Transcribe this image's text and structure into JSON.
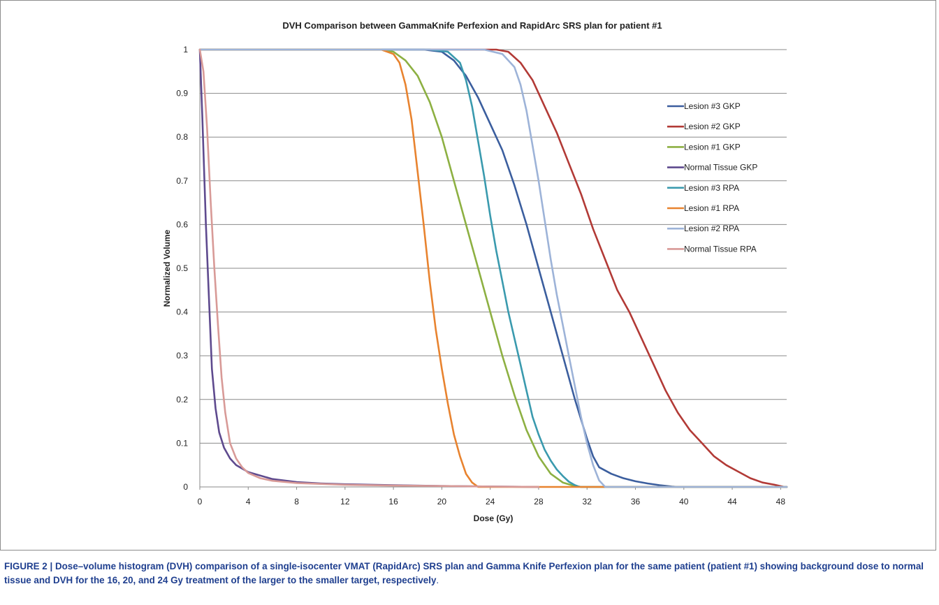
{
  "chart_data": {
    "type": "line",
    "title": "DVH Comparison between GammaKnife Perfexion and RapidArc SRS plan for patient #1",
    "xlabel": "Dose (Gy)",
    "ylabel": "Normalized Volume",
    "xlim": [
      0,
      48.5
    ],
    "ylim": [
      0,
      1
    ],
    "x_ticks": [
      0,
      4,
      8,
      12,
      16,
      20,
      24,
      28,
      32,
      36,
      40,
      44,
      48
    ],
    "y_ticks": [
      0,
      0.1,
      0.2,
      0.3,
      0.4,
      0.5,
      0.6,
      0.7,
      0.8,
      0.9,
      1
    ],
    "y_tick_labels": [
      "0",
      "0.1",
      "0.2",
      "0.3",
      "0.4",
      "0.5",
      "0.6",
      "0.7",
      "0.8",
      "0.9",
      "1"
    ],
    "grid": "horizontal",
    "legend_position": "right",
    "series": [
      {
        "name": "Lesion #3 GKP",
        "color": "#3b5e9e",
        "x": [
          0,
          18.5,
          20,
          21,
          22,
          23,
          24,
          25,
          26,
          27,
          28,
          29,
          30,
          31,
          32,
          32.5,
          33,
          34,
          35,
          36,
          37,
          38,
          39,
          39.5,
          48.5
        ],
        "y": [
          1,
          1,
          0.995,
          0.975,
          0.94,
          0.89,
          0.83,
          0.77,
          0.69,
          0.6,
          0.5,
          0.4,
          0.3,
          0.2,
          0.11,
          0.07,
          0.045,
          0.03,
          0.02,
          0.013,
          0.008,
          0.004,
          0.001,
          0,
          0
        ]
      },
      {
        "name": "Lesion #2 GKP",
        "color": "#b23a36",
        "x": [
          0,
          24.5,
          25.5,
          26.5,
          27.5,
          28.5,
          29.5,
          30.5,
          31.5,
          32.5,
          33.5,
          34.5,
          35.5,
          36.5,
          37.5,
          38.5,
          39.5,
          40.5,
          41.5,
          42.5,
          43.5,
          44.5,
          45.5,
          46.5,
          47.5,
          48.3,
          48.5
        ],
        "y": [
          1,
          1,
          0.995,
          0.97,
          0.93,
          0.87,
          0.81,
          0.74,
          0.67,
          0.59,
          0.52,
          0.45,
          0.4,
          0.34,
          0.28,
          0.22,
          0.17,
          0.13,
          0.1,
          0.07,
          0.05,
          0.035,
          0.02,
          0.01,
          0.005,
          0,
          0
        ]
      },
      {
        "name": "Lesion #1 GKP",
        "color": "#8db042",
        "x": [
          0,
          15,
          16,
          17,
          18,
          19,
          20,
          21,
          22,
          23,
          24,
          25,
          26,
          27,
          28,
          29,
          30,
          31,
          31.5,
          48.5
        ],
        "y": [
          1,
          1,
          0.995,
          0.975,
          0.94,
          0.88,
          0.8,
          0.7,
          0.6,
          0.5,
          0.4,
          0.3,
          0.21,
          0.13,
          0.07,
          0.03,
          0.01,
          0.002,
          0,
          0
        ]
      },
      {
        "name": "Normal Tissue GKP",
        "color": "#5e4a8e",
        "x": [
          0,
          0.2,
          0.5,
          0.8,
          1.0,
          1.3,
          1.6,
          2,
          2.5,
          3,
          4,
          6,
          8,
          10,
          12,
          16,
          20,
          24,
          28
        ],
        "y": [
          1,
          0.85,
          0.6,
          0.4,
          0.27,
          0.18,
          0.125,
          0.09,
          0.065,
          0.05,
          0.034,
          0.018,
          0.011,
          0.008,
          0.006,
          0.004,
          0.002,
          0.001,
          0
        ]
      },
      {
        "name": "Lesion #3 RPA",
        "color": "#3a9aae",
        "x": [
          0,
          19,
          20.5,
          21.5,
          22,
          22.5,
          23,
          23.5,
          24,
          24.5,
          25,
          25.5,
          26,
          26.5,
          27,
          27.5,
          28,
          28.5,
          29,
          29.5,
          30,
          30.5,
          31,
          31.3,
          31.5,
          48.5
        ],
        "y": [
          1,
          1,
          0.995,
          0.97,
          0.93,
          0.87,
          0.79,
          0.71,
          0.62,
          0.54,
          0.47,
          0.4,
          0.34,
          0.28,
          0.22,
          0.16,
          0.12,
          0.085,
          0.06,
          0.04,
          0.025,
          0.012,
          0.004,
          0.001,
          0,
          0
        ]
      },
      {
        "name": "Lesion #1 RPA",
        "color": "#e8832f",
        "x": [
          0,
          15,
          16,
          16.5,
          17,
          17.5,
          18,
          18.5,
          19,
          19.5,
          20,
          20.5,
          21,
          21.5,
          22,
          22.5,
          23,
          48.5
        ],
        "y": [
          1,
          1,
          0.99,
          0.97,
          0.92,
          0.84,
          0.72,
          0.6,
          0.47,
          0.36,
          0.27,
          0.19,
          0.12,
          0.07,
          0.03,
          0.01,
          0,
          0
        ]
      },
      {
        "name": "Lesion #2 RPA",
        "color": "#9db3d8",
        "x": [
          0,
          23.5,
          25,
          26,
          26.5,
          27,
          27.5,
          28,
          28.5,
          29,
          29.5,
          30,
          30.5,
          31,
          31.5,
          32,
          32.5,
          33,
          33.5,
          48.5
        ],
        "y": [
          1,
          1,
          0.99,
          0.96,
          0.92,
          0.86,
          0.78,
          0.7,
          0.61,
          0.52,
          0.44,
          0.37,
          0.3,
          0.23,
          0.16,
          0.1,
          0.05,
          0.015,
          0,
          0
        ]
      },
      {
        "name": "Normal Tissue RPA",
        "color": "#d89a97",
        "x": [
          0,
          0.3,
          0.6,
          0.9,
          1.2,
          1.5,
          1.8,
          2.1,
          2.5,
          3,
          3.5,
          4,
          5,
          6,
          8,
          12,
          16,
          20,
          24,
          28
        ],
        "y": [
          1,
          0.95,
          0.82,
          0.65,
          0.5,
          0.37,
          0.25,
          0.17,
          0.1,
          0.065,
          0.045,
          0.032,
          0.02,
          0.014,
          0.009,
          0.005,
          0.003,
          0.002,
          0.001,
          0
        ]
      }
    ]
  },
  "caption": {
    "label": "FIGURE 2",
    "separator": " | ",
    "text": "Dose–volume histogram (DVH) comparison of a single-isocenter VMAT (RapidArc) SRS plan and Gamma Knife Perfexion plan for the same patient (patient #1) showing background dose to normal tissue and DVH for the 16, 20, and 24 Gy treatment of the larger to the smaller target, respectively",
    "end": "."
  }
}
